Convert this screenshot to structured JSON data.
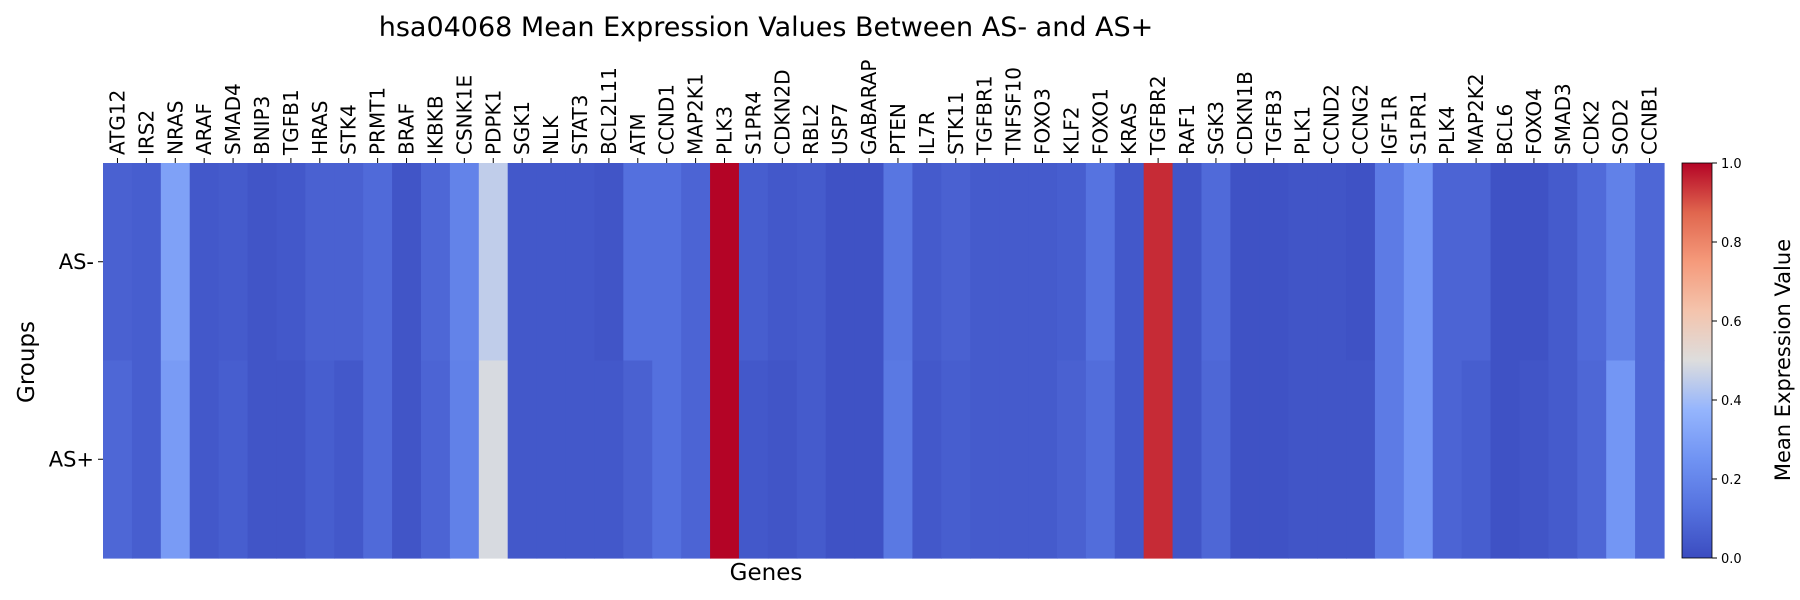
{
  "chart_data": {
    "type": "heatmap",
    "title": "hsa04068 Mean Expression Values Between AS- and AS+",
    "xlabel": "Genes",
    "ylabel": "Groups",
    "rows": [
      "AS-",
      "AS+"
    ],
    "columns": [
      "ATG12",
      "IRS2",
      "NRAS",
      "ARAF",
      "SMAD4",
      "BNIP3",
      "TGFB1",
      "HRAS",
      "STK4",
      "PRMT1",
      "BRAF",
      "IKBKB",
      "CSNK1E",
      "PDPK1",
      "SGK1",
      "NLK",
      "STAT3",
      "BCL2L11",
      "ATM",
      "CCND1",
      "MAP2K1",
      "PLK3",
      "S1PR4",
      "CDKN2D",
      "RBL2",
      "USP7",
      "GABARAP",
      "PTEN",
      "IL7R",
      "STK11",
      "TGFBR1",
      "TNFSF10",
      "FOXO3",
      "KLF2",
      "FOXO1",
      "KRAS",
      "TGFBR2",
      "RAF1",
      "SGK3",
      "CDKN1B",
      "TGFB3",
      "PLK1",
      "CCND2",
      "CCNG2",
      "IGF1R",
      "S1PR1",
      "PLK4",
      "MAP2K2",
      "BCL6",
      "FOXO4",
      "SMAD3",
      "CDK2",
      "SOD2",
      "CCNB1"
    ],
    "values": [
      [
        0.07,
        0.06,
        0.3,
        0.04,
        0.05,
        0.03,
        0.04,
        0.07,
        0.07,
        0.1,
        0.03,
        0.09,
        0.19,
        0.45,
        0.04,
        0.04,
        0.04,
        0.03,
        0.12,
        0.12,
        0.08,
        1.0,
        0.06,
        0.04,
        0.05,
        0.02,
        0.02,
        0.14,
        0.05,
        0.07,
        0.05,
        0.05,
        0.05,
        0.06,
        0.13,
        0.04,
        0.95,
        0.03,
        0.1,
        0.02,
        0.02,
        0.03,
        0.03,
        0.02,
        0.16,
        0.26,
        0.08,
        0.08,
        0.02,
        0.02,
        0.05,
        0.1,
        0.18,
        0.09
      ],
      [
        0.09,
        0.06,
        0.28,
        0.04,
        0.06,
        0.03,
        0.03,
        0.06,
        0.04,
        0.1,
        0.03,
        0.08,
        0.18,
        0.49,
        0.04,
        0.04,
        0.04,
        0.04,
        0.07,
        0.12,
        0.08,
        1.0,
        0.04,
        0.03,
        0.05,
        0.02,
        0.02,
        0.15,
        0.04,
        0.06,
        0.05,
        0.05,
        0.05,
        0.07,
        0.11,
        0.04,
        0.95,
        0.03,
        0.09,
        0.02,
        0.02,
        0.03,
        0.03,
        0.03,
        0.16,
        0.26,
        0.08,
        0.06,
        0.02,
        0.03,
        0.05,
        0.09,
        0.26,
        0.09
      ]
    ],
    "colorbar": {
      "label": "Mean Expression Value",
      "ticks": [
        "0.0",
        "0.2",
        "0.4",
        "0.6",
        "0.8",
        "1.0"
      ],
      "range": [
        0,
        1
      ],
      "colormap": "coolwarm"
    }
  }
}
